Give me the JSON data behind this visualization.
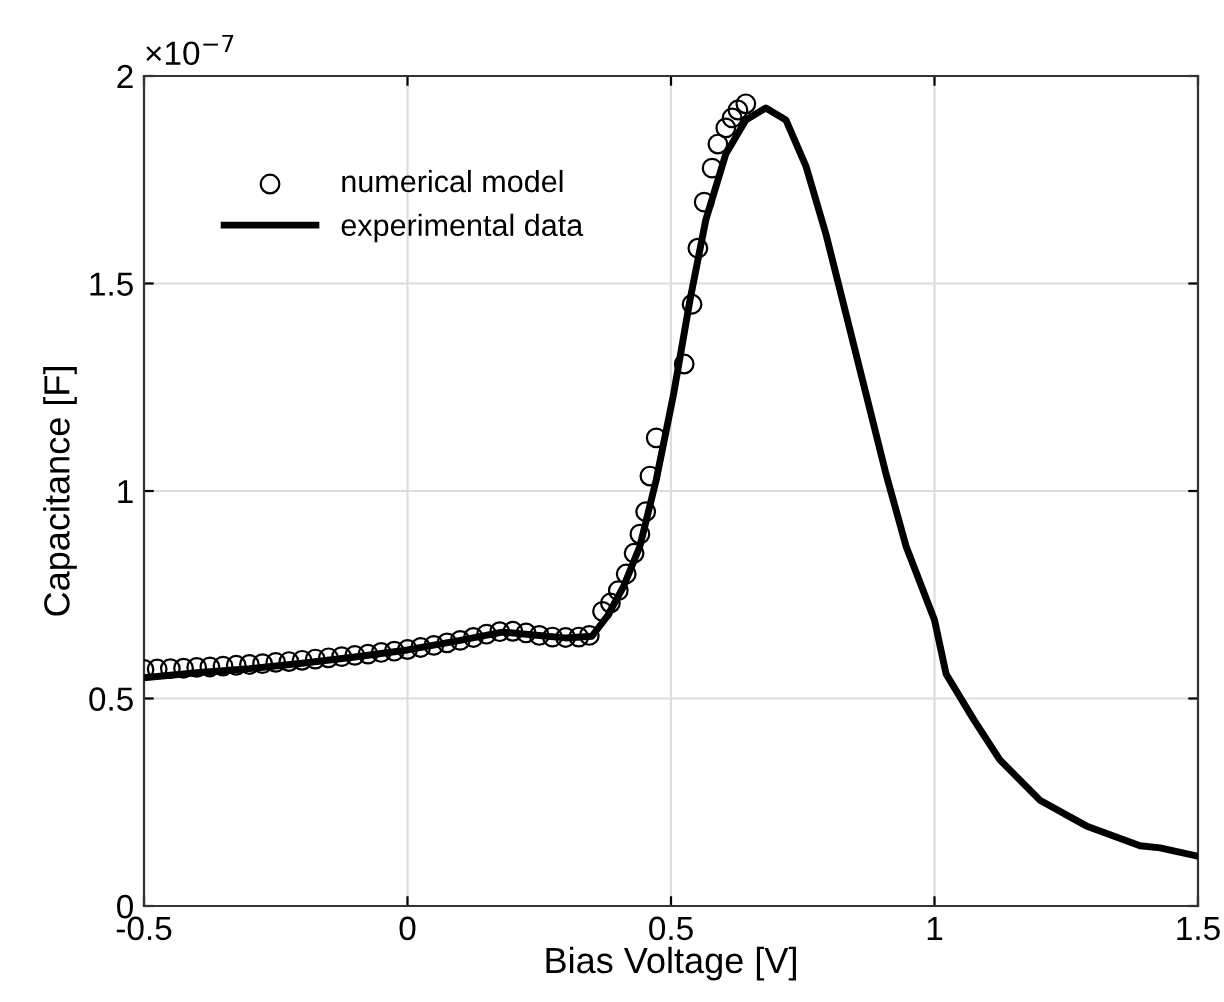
{
  "chart_data": {
    "type": "line",
    "xlabel": "Bias Voltage [V]",
    "ylabel": "Capacitance [F]",
    "annotations": [
      "×10$^{−7}$"
    ],
    "xlim": [
      -0.5,
      1.5
    ],
    "xticks": [
      -0.5,
      0,
      0.5,
      1,
      1.5
    ],
    "ylim": [
      0,
      2
    ],
    "yticks": [
      0,
      0.5,
      1,
      1.5,
      2
    ],
    "grid": true,
    "legend": "top left",
    "series": [
      {
        "name": "numerical model",
        "type": "scatter",
        "marker": "circle",
        "color": "#000000",
        "x": [
          -0.5,
          -0.475,
          -0.45,
          -0.425,
          -0.4,
          -0.375,
          -0.35,
          -0.325,
          -0.3,
          -0.275,
          -0.25,
          -0.225,
          -0.2,
          -0.175,
          -0.15,
          -0.125,
          -0.1,
          -0.075,
          -0.05,
          -0.025,
          0,
          0.025,
          0.05,
          0.075,
          0.1,
          0.125,
          0.15,
          0.175,
          0.2,
          0.225,
          0.25,
          0.275,
          0.3,
          0.325,
          0.345,
          0.37,
          0.385,
          0.4,
          0.415,
          0.43,
          0.441,
          0.452,
          0.46,
          0.472,
          0.525,
          0.54,
          0.551,
          0.563,
          0.578,
          0.589,
          0.604,
          0.616,
          0.627,
          0.642
        ],
        "values": [
          0.57,
          0.571,
          0.572,
          0.573,
          0.575,
          0.576,
          0.578,
          0.58,
          0.582,
          0.584,
          0.587,
          0.589,
          0.592,
          0.595,
          0.598,
          0.601,
          0.604,
          0.607,
          0.611,
          0.614,
          0.618,
          0.623,
          0.628,
          0.634,
          0.64,
          0.647,
          0.655,
          0.661,
          0.662,
          0.658,
          0.652,
          0.648,
          0.647,
          0.648,
          0.652,
          0.71,
          0.73,
          0.76,
          0.8,
          0.85,
          0.896,
          0.95,
          1.036,
          1.128,
          1.306,
          1.45,
          1.585,
          1.696,
          1.778,
          1.836,
          1.875,
          1.899,
          1.918,
          1.933
        ]
      },
      {
        "name": "experimental data",
        "line_style": "solid",
        "marker": "none",
        "color": "#000000",
        "x": [
          -0.5,
          -0.4,
          -0.3,
          -0.2,
          -0.1,
          0,
          0.1,
          0.18,
          0.25,
          0.3,
          0.35,
          0.38,
          0.41,
          0.441,
          0.472,
          0.505,
          0.536,
          0.566,
          0.604,
          0.642,
          0.68,
          0.718,
          0.756,
          0.794,
          0.832,
          0.87,
          0.908,
          0.946,
          1.0,
          1.022,
          1.075,
          1.124,
          1.2,
          1.288,
          1.39,
          1.428,
          1.5
        ],
        "values": [
          0.55,
          0.562,
          0.572,
          0.585,
          0.6,
          0.617,
          0.64,
          0.66,
          0.652,
          0.646,
          0.65,
          0.7,
          0.77,
          0.867,
          1.027,
          1.234,
          1.46,
          1.653,
          1.812,
          1.894,
          1.923,
          1.894,
          1.783,
          1.619,
          1.427,
          1.234,
          1.041,
          0.867,
          0.689,
          0.559,
          0.448,
          0.352,
          0.255,
          0.193,
          0.145,
          0.14,
          0.12
        ]
      }
    ]
  }
}
